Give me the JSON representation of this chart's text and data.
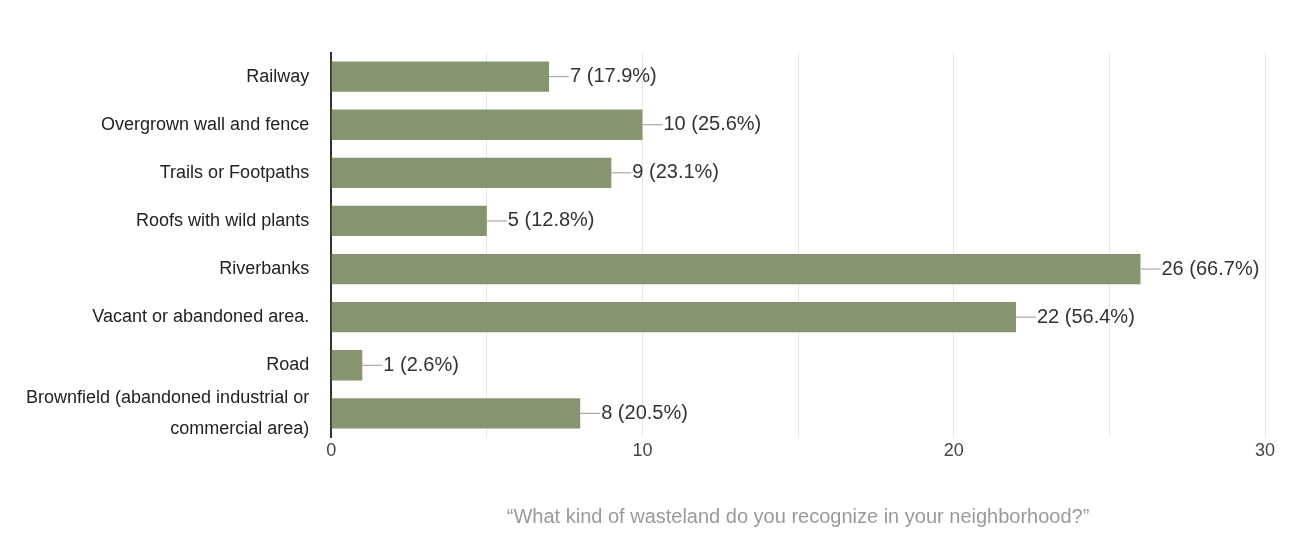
{
  "chart_data": {
    "type": "bar",
    "orientation": "horizontal",
    "categories": [
      "Railway",
      "Overgrown wall and fence",
      "Trails or Footpaths",
      "Roofs with wild plants",
      "Riverbanks",
      "Vacant or abandoned area.",
      "Road",
      "Brownfield (abandoned industrial or commercial area)"
    ],
    "values": [
      7,
      10,
      9,
      5,
      26,
      22,
      1,
      8
    ],
    "value_labels": [
      "7 (17.9%)",
      "10 (25.6%)",
      "9 (23.1%)",
      "5 (12.8%)",
      "26 (66.7%)",
      "22 (56.4%)",
      "1 (2.6%)",
      "8 (20.5%)"
    ],
    "color": "#86946f",
    "xlim": [
      0,
      30
    ],
    "xticks": [
      0,
      {
        "value": 5,
        "label": null
      },
      10,
      {
        "value": 15,
        "label": null
      },
      20,
      {
        "value": 25,
        "label": null
      },
      30
    ],
    "grid": "x",
    "legend": false,
    "xlabel": "“What kind of wasteland do you recognize in your neighborhood?”"
  }
}
